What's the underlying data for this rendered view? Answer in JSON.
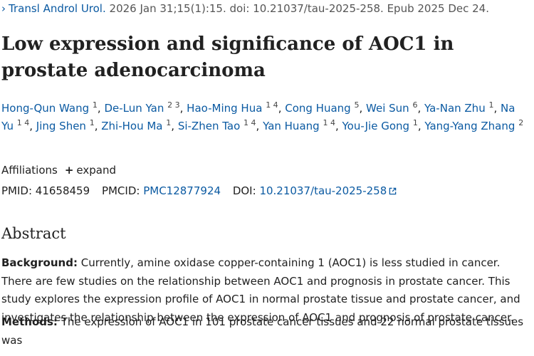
{
  "citation": {
    "journal": "Transl Androl Urol.",
    "details": "2026 Jan 31;15(1):15. doi: 10.21037/tau-2025-258. Epub 2025 Dec 24."
  },
  "title": "Low expression and significance of AOC1 in prostate adenocarcinoma",
  "authors": [
    {
      "name": "Hong-Qun Wang",
      "aff": "1"
    },
    {
      "name": "De-Lun Yan",
      "aff": "2 3"
    },
    {
      "name": "Hao-Ming Hua",
      "aff": "1 4"
    },
    {
      "name": "Cong Huang",
      "aff": "5"
    },
    {
      "name": "Wei Sun",
      "aff": "6"
    },
    {
      "name": "Ya-Nan Zhu",
      "aff": "1"
    },
    {
      "name": "Na Yu",
      "aff": "1 4"
    },
    {
      "name": "Jing Shen",
      "aff": "1"
    },
    {
      "name": "Zhi-Hou Ma",
      "aff": "1"
    },
    {
      "name": "Si-Zhen Tao",
      "aff": "1 4"
    },
    {
      "name": "Yan Huang",
      "aff": "1 4"
    },
    {
      "name": "You-Jie Gong",
      "aff": "1"
    },
    {
      "name": "Yang-Yang Zhang",
      "aff": "2"
    }
  ],
  "affiliations": {
    "label": "Affiliations",
    "expand_label": "expand"
  },
  "ids": {
    "pmid_label": "PMID:",
    "pmid": "41658459",
    "pmcid_label": "PMCID:",
    "pmcid": "PMC12877924",
    "doi_label": "DOI:",
    "doi": "10.21037/tau-2025-258"
  },
  "abstract": {
    "heading": "Abstract",
    "background_label": "Background:",
    "background_text": "Currently, amine oxidase copper-containing 1 (AOC1) is less studied in cancer. There are few studies on the relationship between AOC1 and prognosis in prostate cancer. This study explores the expression profile of AOC1 in normal prostate tissue and prostate cancer, and investigates the relationship between the expression of AOC1 and prognosis of prostate cancer.",
    "methods_label": "Methods:",
    "methods_text": "The expression of AOC1 in 101 prostate cancer tissues and 22 normal prostate tissues was"
  }
}
